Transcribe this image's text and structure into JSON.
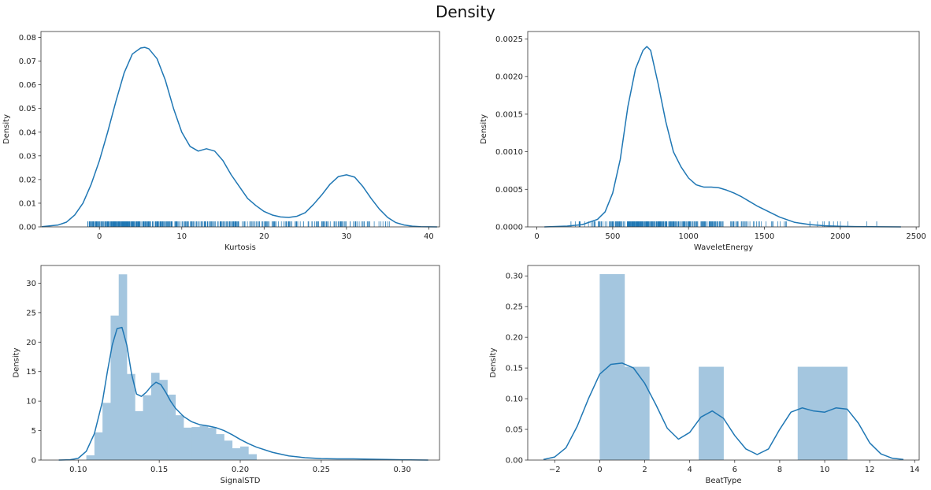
{
  "figure": {
    "title": "Density"
  },
  "colors": {
    "line": "#1f77b4",
    "bar": "#a4c6df",
    "frame": "#333333",
    "background": "#ffffff"
  },
  "chart_data": [
    {
      "type": "area",
      "plot": "kde-with-rug",
      "xlabel": "Kurtosis",
      "ylabel": "Density",
      "xlim": [
        -7.1,
        41.3
      ],
      "ylim": [
        0,
        0.0825
      ],
      "xticks": [
        0,
        10,
        20,
        30,
        40
      ],
      "xtick_labels": [
        "0",
        "10",
        "20",
        "30",
        "40"
      ],
      "yticks": [
        0,
        0.01,
        0.02,
        0.03,
        0.04,
        0.05,
        0.06,
        0.07,
        0.08
      ],
      "ytick_labels": [
        "0.00",
        "0.01",
        "0.02",
        "0.03",
        "0.04",
        "0.05",
        "0.06",
        "0.07",
        "0.08"
      ],
      "kde": {
        "x": [
          -7,
          -5,
          -4,
          -3,
          -2,
          -1,
          0,
          1,
          2,
          3,
          4,
          5,
          5.5,
          6,
          7,
          8,
          9,
          10,
          11,
          12,
          13,
          14,
          15,
          16,
          17,
          18,
          19,
          20,
          21,
          22,
          23,
          24,
          25,
          26,
          27,
          28,
          29,
          30,
          31,
          32,
          33,
          34,
          35,
          36,
          37,
          38,
          39,
          40,
          41
        ],
        "y": [
          0.0001,
          0.0008,
          0.002,
          0.005,
          0.01,
          0.018,
          0.028,
          0.04,
          0.053,
          0.065,
          0.073,
          0.0755,
          0.0758,
          0.0752,
          0.071,
          0.062,
          0.05,
          0.04,
          0.034,
          0.032,
          0.033,
          0.032,
          0.028,
          0.022,
          0.017,
          0.012,
          0.009,
          0.0065,
          0.005,
          0.0042,
          0.004,
          0.0045,
          0.006,
          0.0095,
          0.0135,
          0.018,
          0.0212,
          0.022,
          0.021,
          0.017,
          0.012,
          0.0075,
          0.004,
          0.0018,
          0.0008,
          0.0003,
          0.0001,
          3e-05,
          0
        ]
      },
      "rug": {
        "min": -1.4,
        "max": 35.2,
        "density_sample": [
          0.8,
          1,
          1,
          0.9,
          0.7,
          0.5,
          0.45,
          0.5,
          0.35,
          0.25,
          0.2,
          0.2,
          0.3,
          0.4,
          0.25,
          0.1
        ]
      }
    },
    {
      "type": "area",
      "plot": "kde-with-rug",
      "xlabel": "WaveletEnergy",
      "ylabel": "Density",
      "xlim": [
        -60,
        2520
      ],
      "ylim": [
        0,
        0.0026
      ],
      "xticks": [
        0,
        500,
        1000,
        1500,
        2000,
        2500
      ],
      "xtick_labels": [
        "0",
        "500",
        "1000",
        "1500",
        "2000",
        "2500"
      ],
      "yticks": [
        0,
        0.0005,
        0.001,
        0.0015,
        0.002,
        0.0025
      ],
      "ytick_labels": [
        "0.0000",
        "0.0005",
        "0.0010",
        "0.0015",
        "0.0020",
        "0.0025"
      ],
      "kde": {
        "x": [
          50,
          200,
          300,
          400,
          450,
          500,
          550,
          600,
          650,
          700,
          725,
          750,
          800,
          850,
          900,
          950,
          1000,
          1050,
          1100,
          1150,
          1200,
          1250,
          1300,
          1350,
          1400,
          1450,
          1500,
          1600,
          1700,
          1800,
          1900,
          2000,
          2100,
          2200,
          2300,
          2400
        ],
        "y": [
          0,
          1e-05,
          3e-05,
          0.0001,
          0.0002,
          0.00045,
          0.0009,
          0.0016,
          0.0021,
          0.00235,
          0.0024,
          0.00235,
          0.0019,
          0.0014,
          0.001,
          0.0008,
          0.00065,
          0.00056,
          0.00053,
          0.00053,
          0.00052,
          0.00049,
          0.00045,
          0.0004,
          0.00034,
          0.00028,
          0.00023,
          0.00013,
          6e-05,
          3e-05,
          1.5e-05,
          8e-06,
          4e-06,
          2e-06,
          1e-06,
          0
        ]
      },
      "rug": {
        "min": 225,
        "max": 2240,
        "density_sample": [
          0.1,
          0.3,
          0.8,
          1,
          0.9,
          0.7,
          0.55,
          0.45,
          0.35,
          0.2,
          0.12,
          0.08,
          0.06,
          0.05,
          0.04,
          0.03
        ]
      }
    },
    {
      "type": "bar",
      "plot": "histogram-with-kde",
      "xlabel": "SignalSTD",
      "ylabel": "Density",
      "xlim": [
        0.077,
        0.323
      ],
      "ylim": [
        0,
        33
      ],
      "xticks": [
        0.1,
        0.15,
        0.2,
        0.25,
        0.3
      ],
      "xtick_labels": [
        "0.10",
        "0.15",
        "0.20",
        "0.25",
        "0.30"
      ],
      "yticks": [
        0,
        5,
        10,
        15,
        20,
        25,
        30
      ],
      "ytick_labels": [
        "0",
        "5",
        "10",
        "15",
        "20",
        "25",
        "30"
      ],
      "bins": {
        "start": 0.105,
        "width": 0.005,
        "heights": [
          0.8,
          4.7,
          9.7,
          24.5,
          31.5,
          14.6,
          8.3,
          11.0,
          14.8,
          13.6,
          11.1,
          7.6,
          5.5,
          5.6,
          5.8,
          5.5,
          4.4,
          3.3,
          2.0,
          2.3,
          1.0
        ]
      },
      "kde": {
        "x": [
          0.088,
          0.095,
          0.1,
          0.105,
          0.11,
          0.115,
          0.118,
          0.121,
          0.124,
          0.127,
          0.13,
          0.133,
          0.136,
          0.139,
          0.142,
          0.145,
          0.148,
          0.151,
          0.154,
          0.157,
          0.16,
          0.165,
          0.17,
          0.175,
          0.18,
          0.185,
          0.19,
          0.195,
          0.2,
          0.205,
          0.21,
          0.22,
          0.23,
          0.24,
          0.25,
          0.26,
          0.27,
          0.28,
          0.29,
          0.3,
          0.31,
          0.316
        ],
        "y": [
          0,
          0.05,
          0.3,
          1.5,
          4.5,
          10,
          15,
          19.5,
          22.3,
          22.5,
          19.5,
          14.5,
          11.2,
          10.8,
          11.5,
          12.5,
          13.2,
          12.8,
          11.5,
          10,
          8.8,
          7.4,
          6.5,
          6.0,
          5.8,
          5.5,
          5.0,
          4.3,
          3.5,
          2.8,
          2.2,
          1.3,
          0.7,
          0.4,
          0.25,
          0.2,
          0.2,
          0.15,
          0.1,
          0.05,
          0.01,
          0
        ]
      }
    },
    {
      "type": "bar",
      "plot": "histogram-with-kde",
      "xlabel": "BeatType",
      "ylabel": "Density",
      "xlim": [
        -3.2,
        14.2
      ],
      "ylim": [
        0,
        0.317
      ],
      "xticks": [
        -2,
        0,
        2,
        4,
        6,
        8,
        10,
        12,
        14
      ],
      "xtick_labels": [
        "−2",
        "0",
        "2",
        "4",
        "6",
        "8",
        "10",
        "12",
        "14"
      ],
      "yticks": [
        0,
        0.05,
        0.1,
        0.15,
        0.2,
        0.25,
        0.3
      ],
      "ytick_labels": [
        "0.00",
        "0.05",
        "0.10",
        "0.15",
        "0.20",
        "0.25",
        "0.30"
      ],
      "bins": {
        "start": 0,
        "width": 1.1,
        "heights": [
          0.303,
          0.152,
          0,
          0,
          0.152,
          0,
          0,
          0,
          0.152,
          0.152
        ]
      },
      "kde": {
        "x": [
          -2.5,
          -2,
          -1.5,
          -1,
          -0.5,
          0,
          0.5,
          1,
          1.5,
          2,
          2.5,
          3,
          3.5,
          4,
          4.5,
          5,
          5.5,
          6,
          6.5,
          7,
          7.5,
          8,
          8.5,
          9,
          9.5,
          10,
          10.5,
          11,
          11.5,
          12,
          12.5,
          13,
          13.5
        ],
        "y": [
          0.001,
          0.005,
          0.02,
          0.055,
          0.1,
          0.14,
          0.156,
          0.158,
          0.15,
          0.125,
          0.09,
          0.052,
          0.034,
          0.045,
          0.07,
          0.08,
          0.068,
          0.04,
          0.018,
          0.009,
          0.018,
          0.05,
          0.078,
          0.085,
          0.08,
          0.078,
          0.085,
          0.083,
          0.06,
          0.028,
          0.01,
          0.003,
          0.001
        ]
      }
    }
  ]
}
